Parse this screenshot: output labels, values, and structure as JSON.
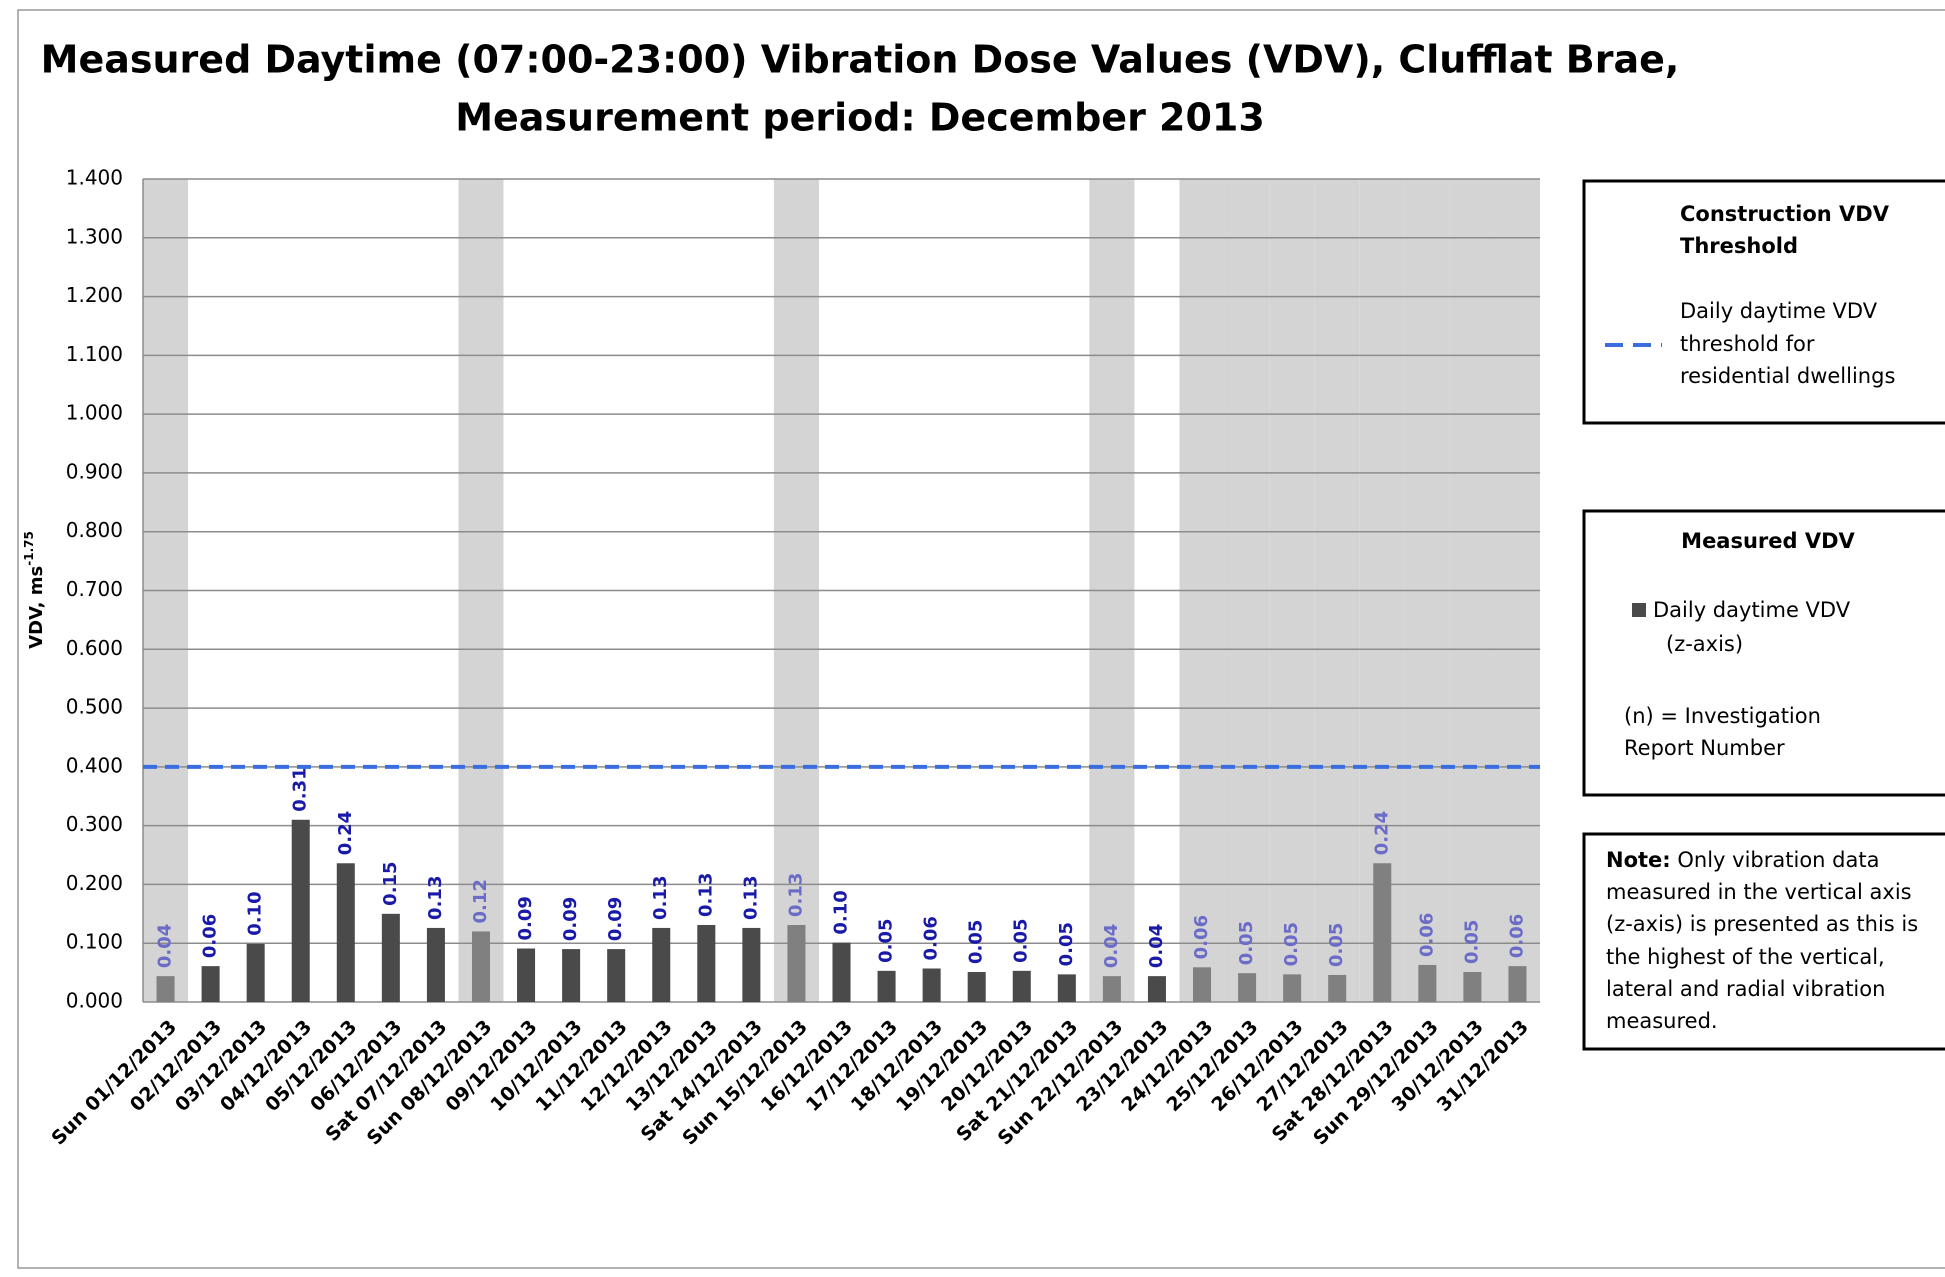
{
  "chart_data": {
    "type": "bar",
    "title": [
      "Measured Daytime (07:00-23:00) Vibration Dose Values (VDV), Clufflat Brae,",
      "Measurement period: December 2013"
    ],
    "y_label": "VDV, ms",
    "y_label_superscript": "-1.75",
    "categories": [
      "Sun 01/12/2013",
      "02/12/2013",
      "03/12/2013",
      "04/12/2013",
      "05/12/2013",
      "06/12/2013",
      "Sat 07/12/2013",
      "Sun 08/12/2013",
      "09/12/2013",
      "10/12/2013",
      "11/12/2013",
      "12/12/2013",
      "13/12/2013",
      "Sat 14/12/2013",
      "Sun 15/12/2013",
      "16/12/2013",
      "17/12/2013",
      "18/12/2013",
      "19/12/2013",
      "20/12/2013",
      "Sat 21/12/2013",
      "Sun 22/12/2013",
      "23/12/2013",
      "24/12/2013",
      "25/12/2013",
      "26/12/2013",
      "27/12/2013",
      "Sat 28/12/2013",
      "Sun 29/12/2013",
      "30/12/2013",
      "31/12/2013"
    ],
    "series": [
      {
        "name": "Daily daytime VDV (z-axis)",
        "color": "#4a4a4a",
        "values": [
          0.044,
          0.061,
          0.099,
          0.31,
          0.236,
          0.15,
          0.126,
          0.12,
          0.091,
          0.09,
          0.09,
          0.126,
          0.131,
          0.126,
          0.131,
          0.101,
          0.053,
          0.057,
          0.051,
          0.053,
          0.047,
          0.044,
          0.044,
          0.059,
          0.049,
          0.047,
          0.046,
          0.236,
          0.063,
          0.051,
          0.061
        ],
        "value_labels": [
          "0.04",
          "0.06",
          "0.10",
          "0.31",
          "0.24",
          "0.15",
          "0.13",
          "0.12",
          "0.09",
          "0.09",
          "0.09",
          "0.13",
          "0.13",
          "0.13",
          "0.13",
          "0.10",
          "0.05",
          "0.06",
          "0.05",
          "0.05",
          "0.05",
          "0.04",
          "0.04",
          "0.06",
          "0.05",
          "0.05",
          "0.05",
          "0.24",
          "0.06",
          "0.05",
          "0.06"
        ]
      }
    ],
    "shaded": [
      true,
      false,
      false,
      false,
      false,
      false,
      false,
      true,
      false,
      false,
      false,
      false,
      false,
      false,
      true,
      false,
      false,
      false,
      false,
      false,
      false,
      true,
      false,
      true,
      true,
      true,
      true,
      true,
      true,
      true,
      true
    ],
    "shade_color": "#d4d4d4",
    "shaded_bar_color": "#808080",
    "label_color": "#1a1aa8",
    "shaded_label_color": "#6b6bc8",
    "threshold": {
      "value": 0.4,
      "color": "#3a6ee0",
      "title": [
        "Construction VDV",
        "Threshold"
      ],
      "name": [
        "Daily daytime VDV",
        "threshold for",
        "residential dwellings"
      ]
    },
    "legend_title": "Measured VDV",
    "legend_entry": [
      "Daily daytime VDV",
      "(z-axis)"
    ],
    "legend_note": [
      "(n) = Investigation",
      "Report Number"
    ],
    "note_label": "Note:",
    "note": [
      "Only vibration data",
      "measured in the vertical axis",
      "(z-axis) is presented as this is",
      "the highest of the vertical,",
      "lateral and radial vibration",
      "measured."
    ],
    "ylim": [
      0,
      1.4
    ],
    "yticks": [
      {
        "value": 0,
        "label": "0.000"
      },
      {
        "value": 0.1,
        "label": "0.100"
      },
      {
        "value": 0.2,
        "label": "0.200"
      },
      {
        "value": 0.3,
        "label": "0.300"
      },
      {
        "value": 0.4,
        "label": "0.400"
      },
      {
        "value": 0.5,
        "label": "0.500"
      },
      {
        "value": 0.6,
        "label": "0.600"
      },
      {
        "value": 0.7,
        "label": "0.700"
      },
      {
        "value": 0.8,
        "label": "0.800"
      },
      {
        "value": 0.9,
        "label": "0.900"
      },
      {
        "value": 1,
        "label": "1.000"
      },
      {
        "value": 1.1,
        "label": "1.100"
      },
      {
        "value": 1.2,
        "label": "1.200"
      },
      {
        "value": 1.3,
        "label": "1.300"
      },
      {
        "value": 1.4,
        "label": "1.400"
      }
    ],
    "grid": true
  }
}
